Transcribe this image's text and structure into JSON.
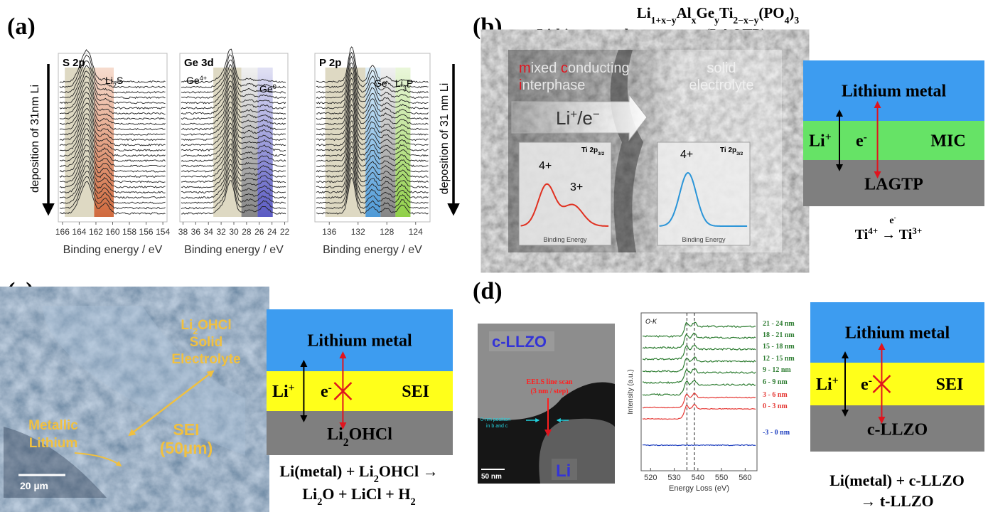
{
  "panel_a": {
    "label": "(a)",
    "arrow_left": "deposition of 31nm Li",
    "arrow_right": "deposition of 31 nm Li",
    "plots": [
      {
        "title": "S 2p",
        "xlim": [
          166.5,
          153.5
        ],
        "xticks": [
          166,
          164,
          162,
          160,
          158,
          156,
          154
        ],
        "xlabel": "Binding energy / eV",
        "peaks": [
          [
            "Li",
            "2",
            "S"
          ]
        ]
      },
      {
        "title": "Ge 3d",
        "xlim": [
          38.5,
          21.5
        ],
        "xticks": [
          38,
          36,
          34,
          32,
          30,
          28,
          26,
          24,
          22
        ],
        "xlabel": "Binding energy / eV",
        "peaks": [
          [
            "Ge",
            "4+"
          ],
          [
            "Ge",
            "0"
          ]
        ]
      },
      {
        "title": "P 2p",
        "xlim": [
          138,
          122
        ],
        "xticks": [
          136,
          132,
          128,
          124
        ],
        "xlabel": "Binding energy / eV",
        "peaks": [
          [
            "Ge"
          ],
          [
            "Li",
            "3",
            "P"
          ]
        ]
      }
    ]
  },
  "panel_b": {
    "label": "(b)",
    "formula": [
      "Li",
      "1+x−y",
      "Al",
      "x",
      "Ge",
      "y",
      "Ti",
      "2−x−y",
      "(PO",
      "4",
      ")",
      "3"
    ],
    "formula_abbr": "(LAGTP)",
    "left_title": "Lithium metal",
    "image": {
      "interphase": [
        [
          "m",
          "ixed ",
          "c",
          "onducting"
        ],
        [
          "i",
          "nterphase"
        ]
      ],
      "electrolyte": [
        "solid",
        "electrolyte"
      ],
      "transport": [
        "Li",
        "+",
        "/e",
        "−"
      ],
      "insets": [
        {
          "title": [
            "Ti 2p",
            "3/2"
          ],
          "peaks": [
            "4+",
            "3+"
          ],
          "xlabel": "Binding Energy"
        },
        {
          "title": [
            "Ti 2p",
            "3/2"
          ],
          "peaks": [
            "4+"
          ],
          "xlabel": "Binding Energy"
        }
      ]
    },
    "diagram": {
      "top": "Lithium metal",
      "middle": "MIC",
      "bottom": "LAGTP",
      "ion": [
        "Li",
        "+"
      ],
      "electron": [
        "e",
        "-"
      ],
      "reaction": [
        "Ti",
        "4+",
        " → Ti",
        "3+"
      ],
      "reaction_over": [
        "e",
        "-"
      ]
    }
  },
  "panel_c": {
    "label": "(c)",
    "image": {
      "electrolyte_formula": [
        "Li",
        "2",
        "OHCl"
      ],
      "electrolyte_lines": [
        "Solid",
        "Electrolyte"
      ],
      "sei": [
        "SEI",
        "(50µm)"
      ],
      "lithium": [
        "Metallic",
        "Lithium"
      ],
      "scale": "20 µm"
    },
    "diagram": {
      "top": "Lithium metal",
      "middle": "SEI",
      "bottom": [
        "Li",
        "2",
        "OHCl"
      ],
      "ion": [
        "Li",
        "+"
      ],
      "electron": [
        "e",
        "-"
      ],
      "equation": [
        [
          "Li(metal) + Li",
          "2",
          "OHCl →"
        ],
        [
          "Li",
          "2",
          "O + LiCl + H",
          "2"
        ]
      ]
    }
  },
  "panel_d": {
    "label": "(d)",
    "tem": {
      "phase_top": "c-LLZO",
      "phase_bottom": "Li",
      "scan": [
        "EELS line scan",
        "(3 nm / step)"
      ],
      "position": [
        "0-nm position",
        "in b and c"
      ],
      "scale": "50 nm"
    },
    "eels": {
      "title": "O-K",
      "xlabel": "Energy Loss (eV)",
      "ylabel": "Intensity (a.u.)",
      "xlim": [
        516,
        565
      ],
      "xticks": [
        520,
        530,
        540,
        550,
        560
      ],
      "series": [
        {
          "name": "21 - 24 nm",
          "color": "#2e7d32"
        },
        {
          "name": "18 - 21 nm",
          "color": "#2e7d32"
        },
        {
          "name": "15 - 18 nm",
          "color": "#2e7d32"
        },
        {
          "name": "12 - 15 nm",
          "color": "#2e7d32"
        },
        {
          "name": "9 - 12 nm",
          "color": "#2e7d32"
        },
        {
          "name": "6 - 9 nm",
          "color": "#2e7d32"
        },
        {
          "name": "3 - 6 nm",
          "color": "#e53935"
        },
        {
          "name": "0 - 3 nm",
          "color": "#e53935"
        },
        {
          "name": "-3 - 0 nm",
          "color": "#1e3fbf"
        }
      ]
    },
    "diagram": {
      "top": "Lithium metal",
      "middle": "SEI",
      "bottom": "c-LLZO",
      "ion": [
        "Li",
        "+"
      ],
      "electron": [
        "e",
        "-"
      ],
      "equation": [
        "Li(metal) + c-LLZO",
        "→ t-LLZO"
      ]
    }
  }
}
